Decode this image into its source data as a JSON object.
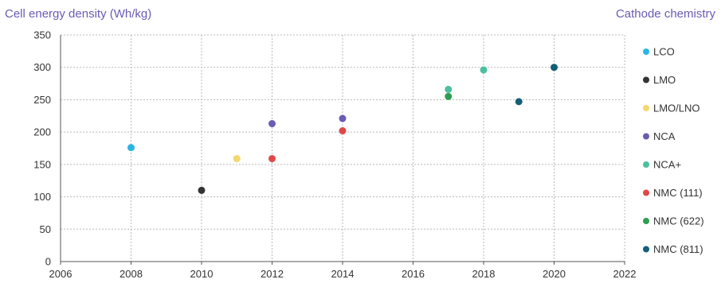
{
  "chart_data": {
    "type": "scatter",
    "title": "Cell energy density (Wh/kg)",
    "legend_title": "Cathode chemistry",
    "xlim": [
      2006,
      2022
    ],
    "ylim": [
      0,
      350
    ],
    "xticks": [
      2006,
      2008,
      2010,
      2012,
      2014,
      2016,
      2018,
      2020,
      2022
    ],
    "yticks": [
      0,
      50,
      100,
      150,
      200,
      250,
      300,
      350
    ],
    "grid": true,
    "legend_position": "right",
    "series": [
      {
        "name": "LCO",
        "color": "#29b5e3",
        "points": [
          {
            "x": 2008,
            "y": 176
          }
        ]
      },
      {
        "name": "LMO",
        "color": "#333333",
        "points": [
          {
            "x": 2010,
            "y": 110
          }
        ]
      },
      {
        "name": "LMO/LNO",
        "color": "#f5d76e",
        "points": [
          {
            "x": 2011,
            "y": 159
          }
        ]
      },
      {
        "name": "NCA",
        "color": "#6a5bb5",
        "points": [
          {
            "x": 2012,
            "y": 213
          },
          {
            "x": 2014,
            "y": 221
          }
        ]
      },
      {
        "name": "NCA+",
        "color": "#4dbf9f",
        "points": [
          {
            "x": 2017,
            "y": 266
          },
          {
            "x": 2018,
            "y": 296
          }
        ]
      },
      {
        "name": "NMC (111)",
        "color": "#e04848",
        "points": [
          {
            "x": 2012,
            "y": 159
          },
          {
            "x": 2014,
            "y": 202
          }
        ]
      },
      {
        "name": "NMC (622)",
        "color": "#2e9e52",
        "points": [
          {
            "x": 2017,
            "y": 255
          }
        ]
      },
      {
        "name": "NMC (811)",
        "color": "#145e78",
        "points": [
          {
            "x": 2019,
            "y": 247
          },
          {
            "x": 2020,
            "y": 300
          }
        ]
      }
    ]
  }
}
